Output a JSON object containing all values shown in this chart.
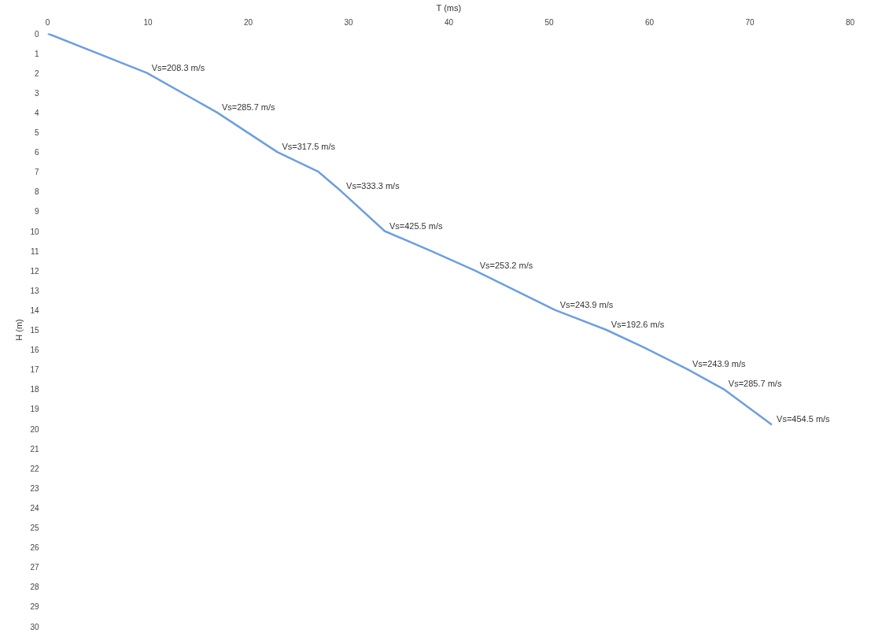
{
  "chart_data": {
    "type": "line",
    "xlabel": "T (ms)",
    "ylabel": "H (m)",
    "x": [
      0,
      9.9,
      16.9,
      22.9,
      27,
      29.3,
      33.6,
      38.2,
      42.6,
      50.6,
      55.7,
      59.5,
      63.8,
      67.4,
      72.2
    ],
    "series": [
      {
        "color": "#6f9fd8",
        "values": [
          0,
          2,
          4,
          6,
          7,
          8,
          10,
          11,
          12,
          14,
          15,
          15.9,
          17,
          18,
          19.8
        ]
      }
    ],
    "xlim": [
      0,
      80
    ],
    "xticks": [
      0,
      10,
      20,
      30,
      40,
      50,
      60,
      70,
      80
    ],
    "ylim": [
      30,
      0
    ],
    "yticks": [
      0,
      1,
      2,
      3,
      4,
      5,
      6,
      7,
      8,
      9,
      10,
      11,
      12,
      13,
      14,
      15,
      16,
      17,
      18,
      19,
      20,
      21,
      22,
      23,
      24,
      25,
      26,
      27,
      28,
      29,
      30
    ],
    "grid": false,
    "marker": "none",
    "line_style": "solid",
    "annotations": [
      {
        "text": "Vs=208.3 m/s",
        "x": 9.9,
        "y": 2
      },
      {
        "text": "Vs=285.7 m/s",
        "x": 16.9,
        "y": 4
      },
      {
        "text": "Vs=317.5 m/s",
        "x": 22.9,
        "y": 6
      },
      {
        "text": "Vs=333.3 m/s",
        "x": 29.3,
        "y": 8
      },
      {
        "text": "Vs=425.5 m/s",
        "x": 33.6,
        "y": 10
      },
      {
        "text": "Vs=253.2 m/s",
        "x": 42.6,
        "y": 12
      },
      {
        "text": "Vs=243.9 m/s",
        "x": 50.6,
        "y": 14
      },
      {
        "text": "Vs=192.6 m/s",
        "x": 55.7,
        "y": 15
      },
      {
        "text": "Vs=243.9 m/s",
        "x": 63.8,
        "y": 17
      },
      {
        "text": "Vs=285.7 m/s",
        "x": 67.4,
        "y": 18
      },
      {
        "text": "Vs=454.5 m/s",
        "x": 72.2,
        "y": 19.8
      }
    ]
  }
}
